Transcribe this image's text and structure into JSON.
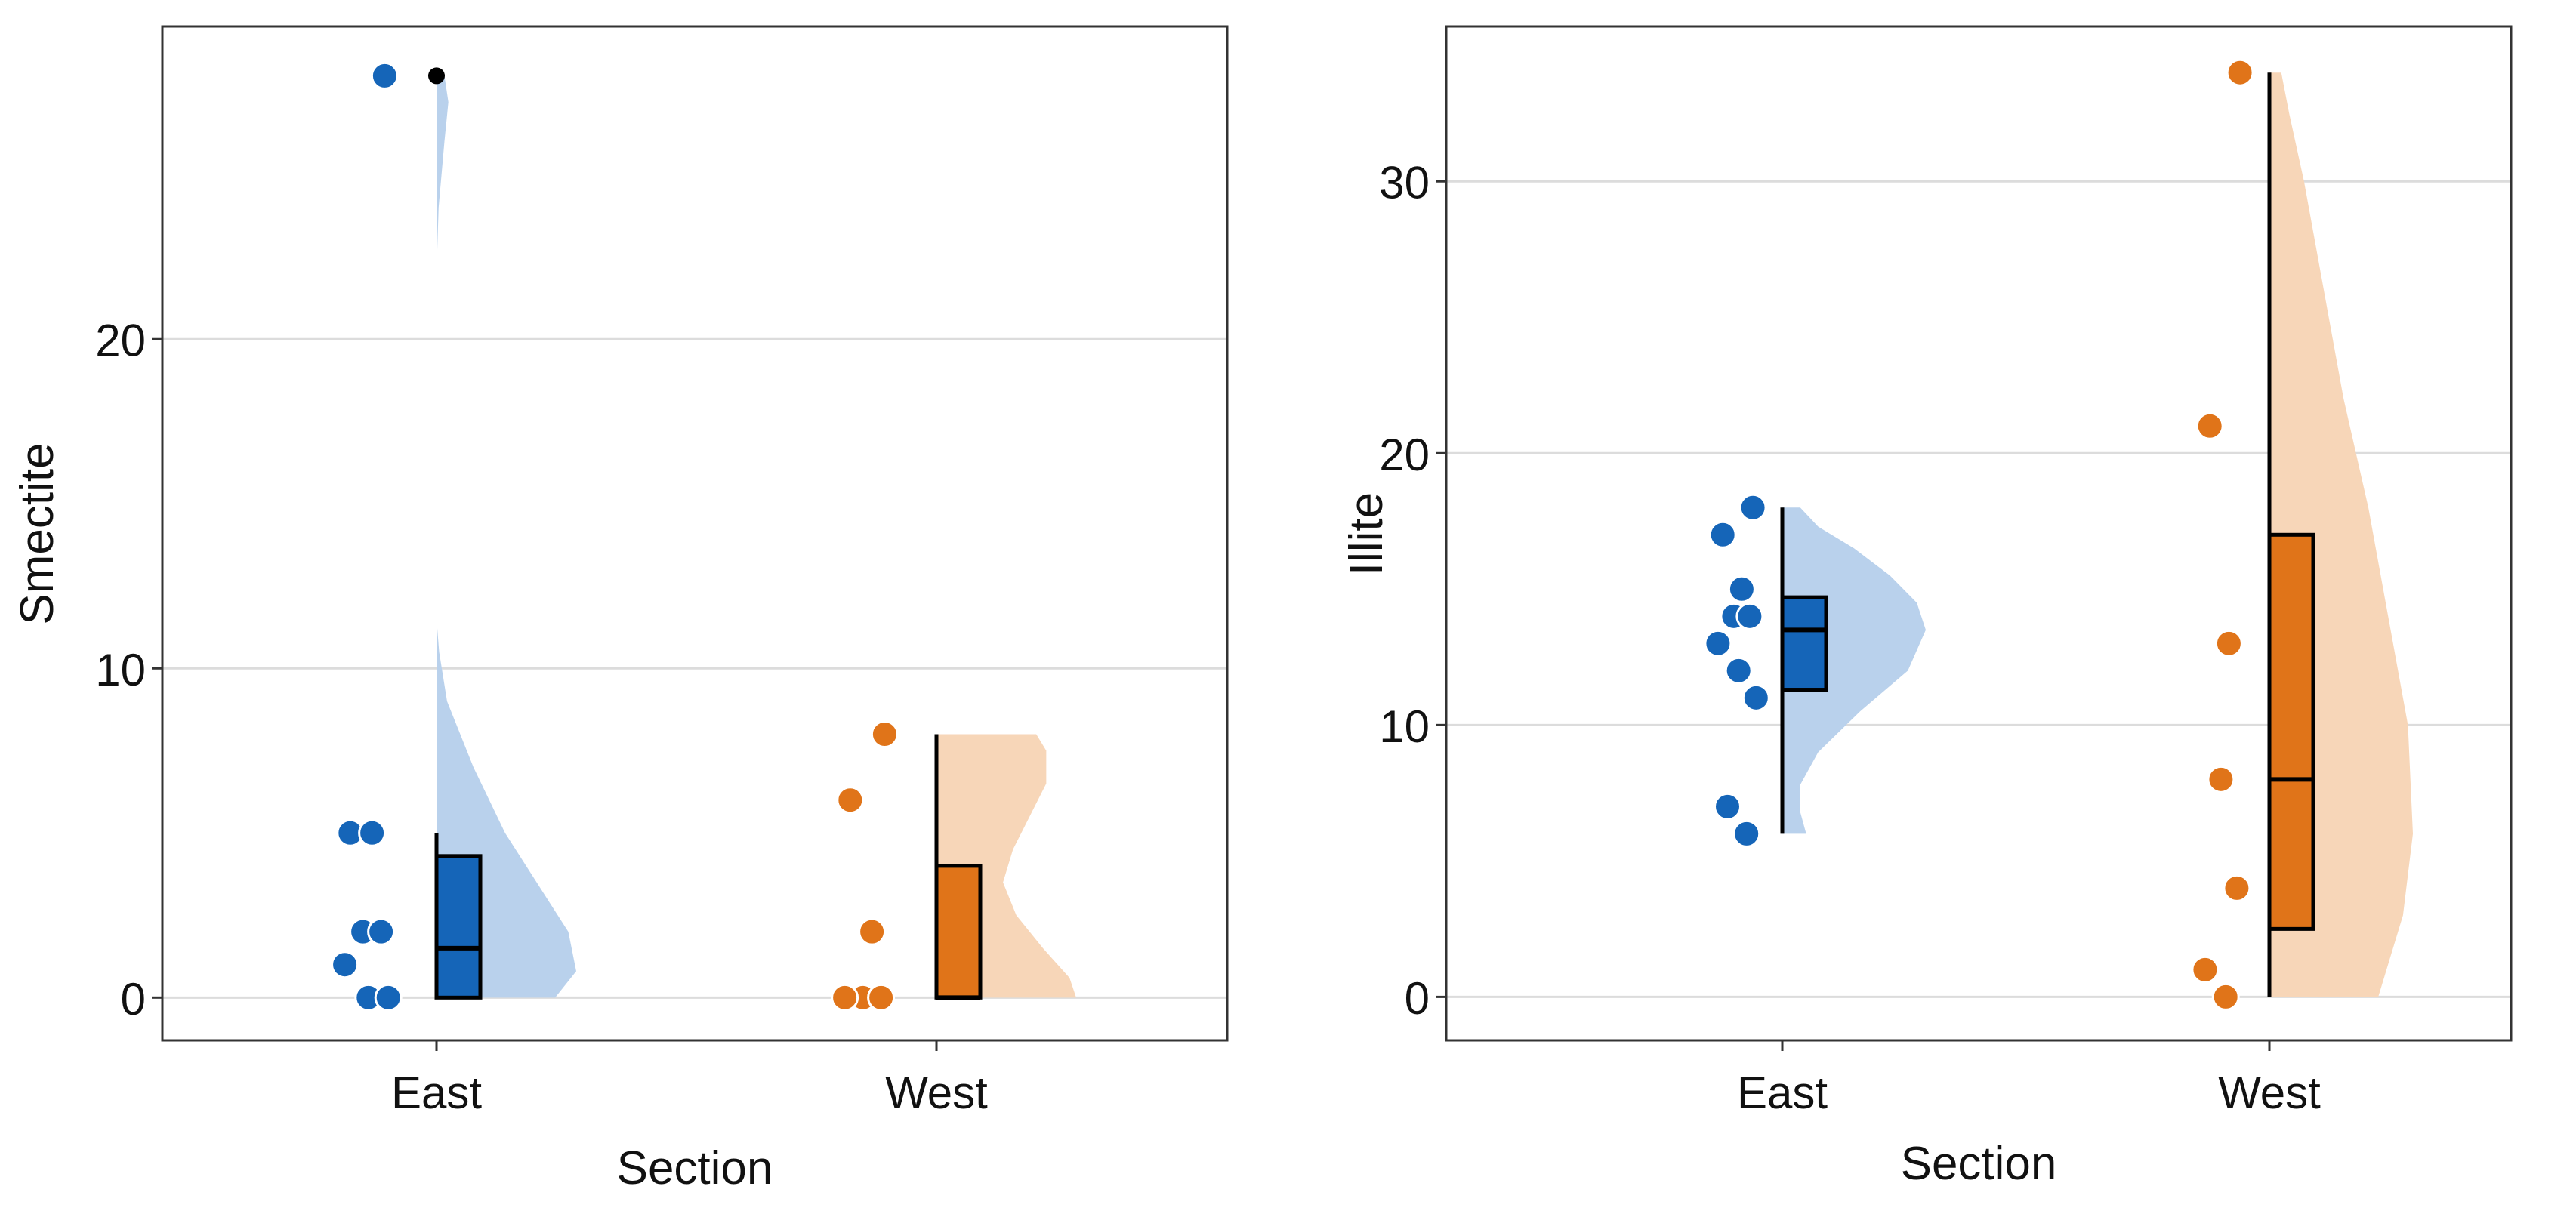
{
  "colors": {
    "east": "#1565B8",
    "east_light": "#B9D1EC",
    "west": "#E07419",
    "west_light": "#F7D6B8",
    "grid": "#DCDCDC",
    "axis": "#333333",
    "outlier": "#000000"
  },
  "chart_data": [
    {
      "type": "raincloud",
      "title": "",
      "xlabel": "Section",
      "ylabel": "Smectite",
      "categories": [
        "East",
        "West"
      ],
      "ylim": [
        -1.3,
        29.5
      ],
      "yticks": [
        0,
        10,
        20
      ],
      "ytick_labels": [
        "0",
        "10",
        "20"
      ],
      "grid": true,
      "points": [
        {
          "group": "East",
          "values": [
            28,
            5,
            5,
            2,
            2,
            1,
            0,
            0
          ]
        },
        {
          "group": "West",
          "values": [
            8,
            6,
            2,
            0,
            0,
            0
          ]
        }
      ],
      "boxes": [
        {
          "group": "East",
          "q1": 0,
          "median": 1.5,
          "q3": 4.3,
          "whisker_low": 0,
          "whisker_high": 5,
          "outliers": [
            28
          ]
        },
        {
          "group": "West",
          "q1": 0,
          "median": 0,
          "q3": 4,
          "whisker_low": 0,
          "whisker_high": 8,
          "outliers": []
        }
      ],
      "densities": [
        {
          "group": "East",
          "profile": [
            [
              0,
              0.45
            ],
            [
              0.8,
              0.53
            ],
            [
              2,
              0.5
            ],
            [
              3.5,
              0.38
            ],
            [
              5,
              0.26
            ],
            [
              7,
              0.14
            ],
            [
              9,
              0.04
            ],
            [
              10.5,
              0.01
            ],
            [
              11.5,
              0
            ],
            [
              22,
              0
            ],
            [
              24,
              0.008
            ],
            [
              26,
              0.03
            ],
            [
              27.2,
              0.045
            ],
            [
              28,
              0.03
            ]
          ]
        },
        {
          "group": "West",
          "profile": [
            [
              0,
              0.42
            ],
            [
              0.6,
              0.4
            ],
            [
              1.5,
              0.32
            ],
            [
              2.5,
              0.24
            ],
            [
              3.5,
              0.2
            ],
            [
              4.5,
              0.23
            ],
            [
              5.5,
              0.28
            ],
            [
              6.5,
              0.33
            ],
            [
              7.5,
              0.33
            ],
            [
              8,
              0.3
            ]
          ]
        }
      ]
    },
    {
      "type": "raincloud",
      "title": "",
      "xlabel": "Section",
      "ylabel": "Illite",
      "categories": [
        "East",
        "West"
      ],
      "ylim": [
        -1.6,
        35.7
      ],
      "yticks": [
        0,
        10,
        20,
        30
      ],
      "ytick_labels": [
        "0",
        "10",
        "20",
        "30"
      ],
      "grid": true,
      "points": [
        {
          "group": "East",
          "values": [
            18,
            17,
            15,
            14,
            14,
            13,
            12,
            11,
            7,
            6
          ]
        },
        {
          "group": "West",
          "values": [
            34,
            21,
            13,
            8,
            4,
            1,
            0
          ]
        }
      ],
      "boxes": [
        {
          "group": "East",
          "q1": 11.3,
          "median": 13.5,
          "q3": 14.7,
          "whisker_low": 6,
          "whisker_high": 18,
          "outliers": []
        },
        {
          "group": "West",
          "q1": 2.5,
          "median": 8,
          "q3": 17,
          "whisker_low": 0,
          "whisker_high": 34,
          "outliers": []
        }
      ],
      "densities": [
        {
          "group": "East",
          "profile": [
            [
              6,
              0.08
            ],
            [
              6.8,
              0.06
            ],
            [
              7.8,
              0.06
            ],
            [
              9,
              0.12
            ],
            [
              10.5,
              0.26
            ],
            [
              12,
              0.42
            ],
            [
              13.5,
              0.48
            ],
            [
              14.5,
              0.45
            ],
            [
              15.5,
              0.36
            ],
            [
              16.5,
              0.24
            ],
            [
              17.3,
              0.12
            ],
            [
              18,
              0.06
            ]
          ]
        },
        {
          "group": "West",
          "profile": [
            [
              0,
              0.11
            ],
            [
              3,
              0.135
            ],
            [
              6,
              0.145
            ],
            [
              10,
              0.14
            ],
            [
              14,
              0.12
            ],
            [
              18,
              0.1
            ],
            [
              22,
              0.075
            ],
            [
              26,
              0.055
            ],
            [
              30,
              0.035
            ],
            [
              32.5,
              0.02
            ],
            [
              34,
              0.012
            ]
          ]
        }
      ]
    }
  ]
}
